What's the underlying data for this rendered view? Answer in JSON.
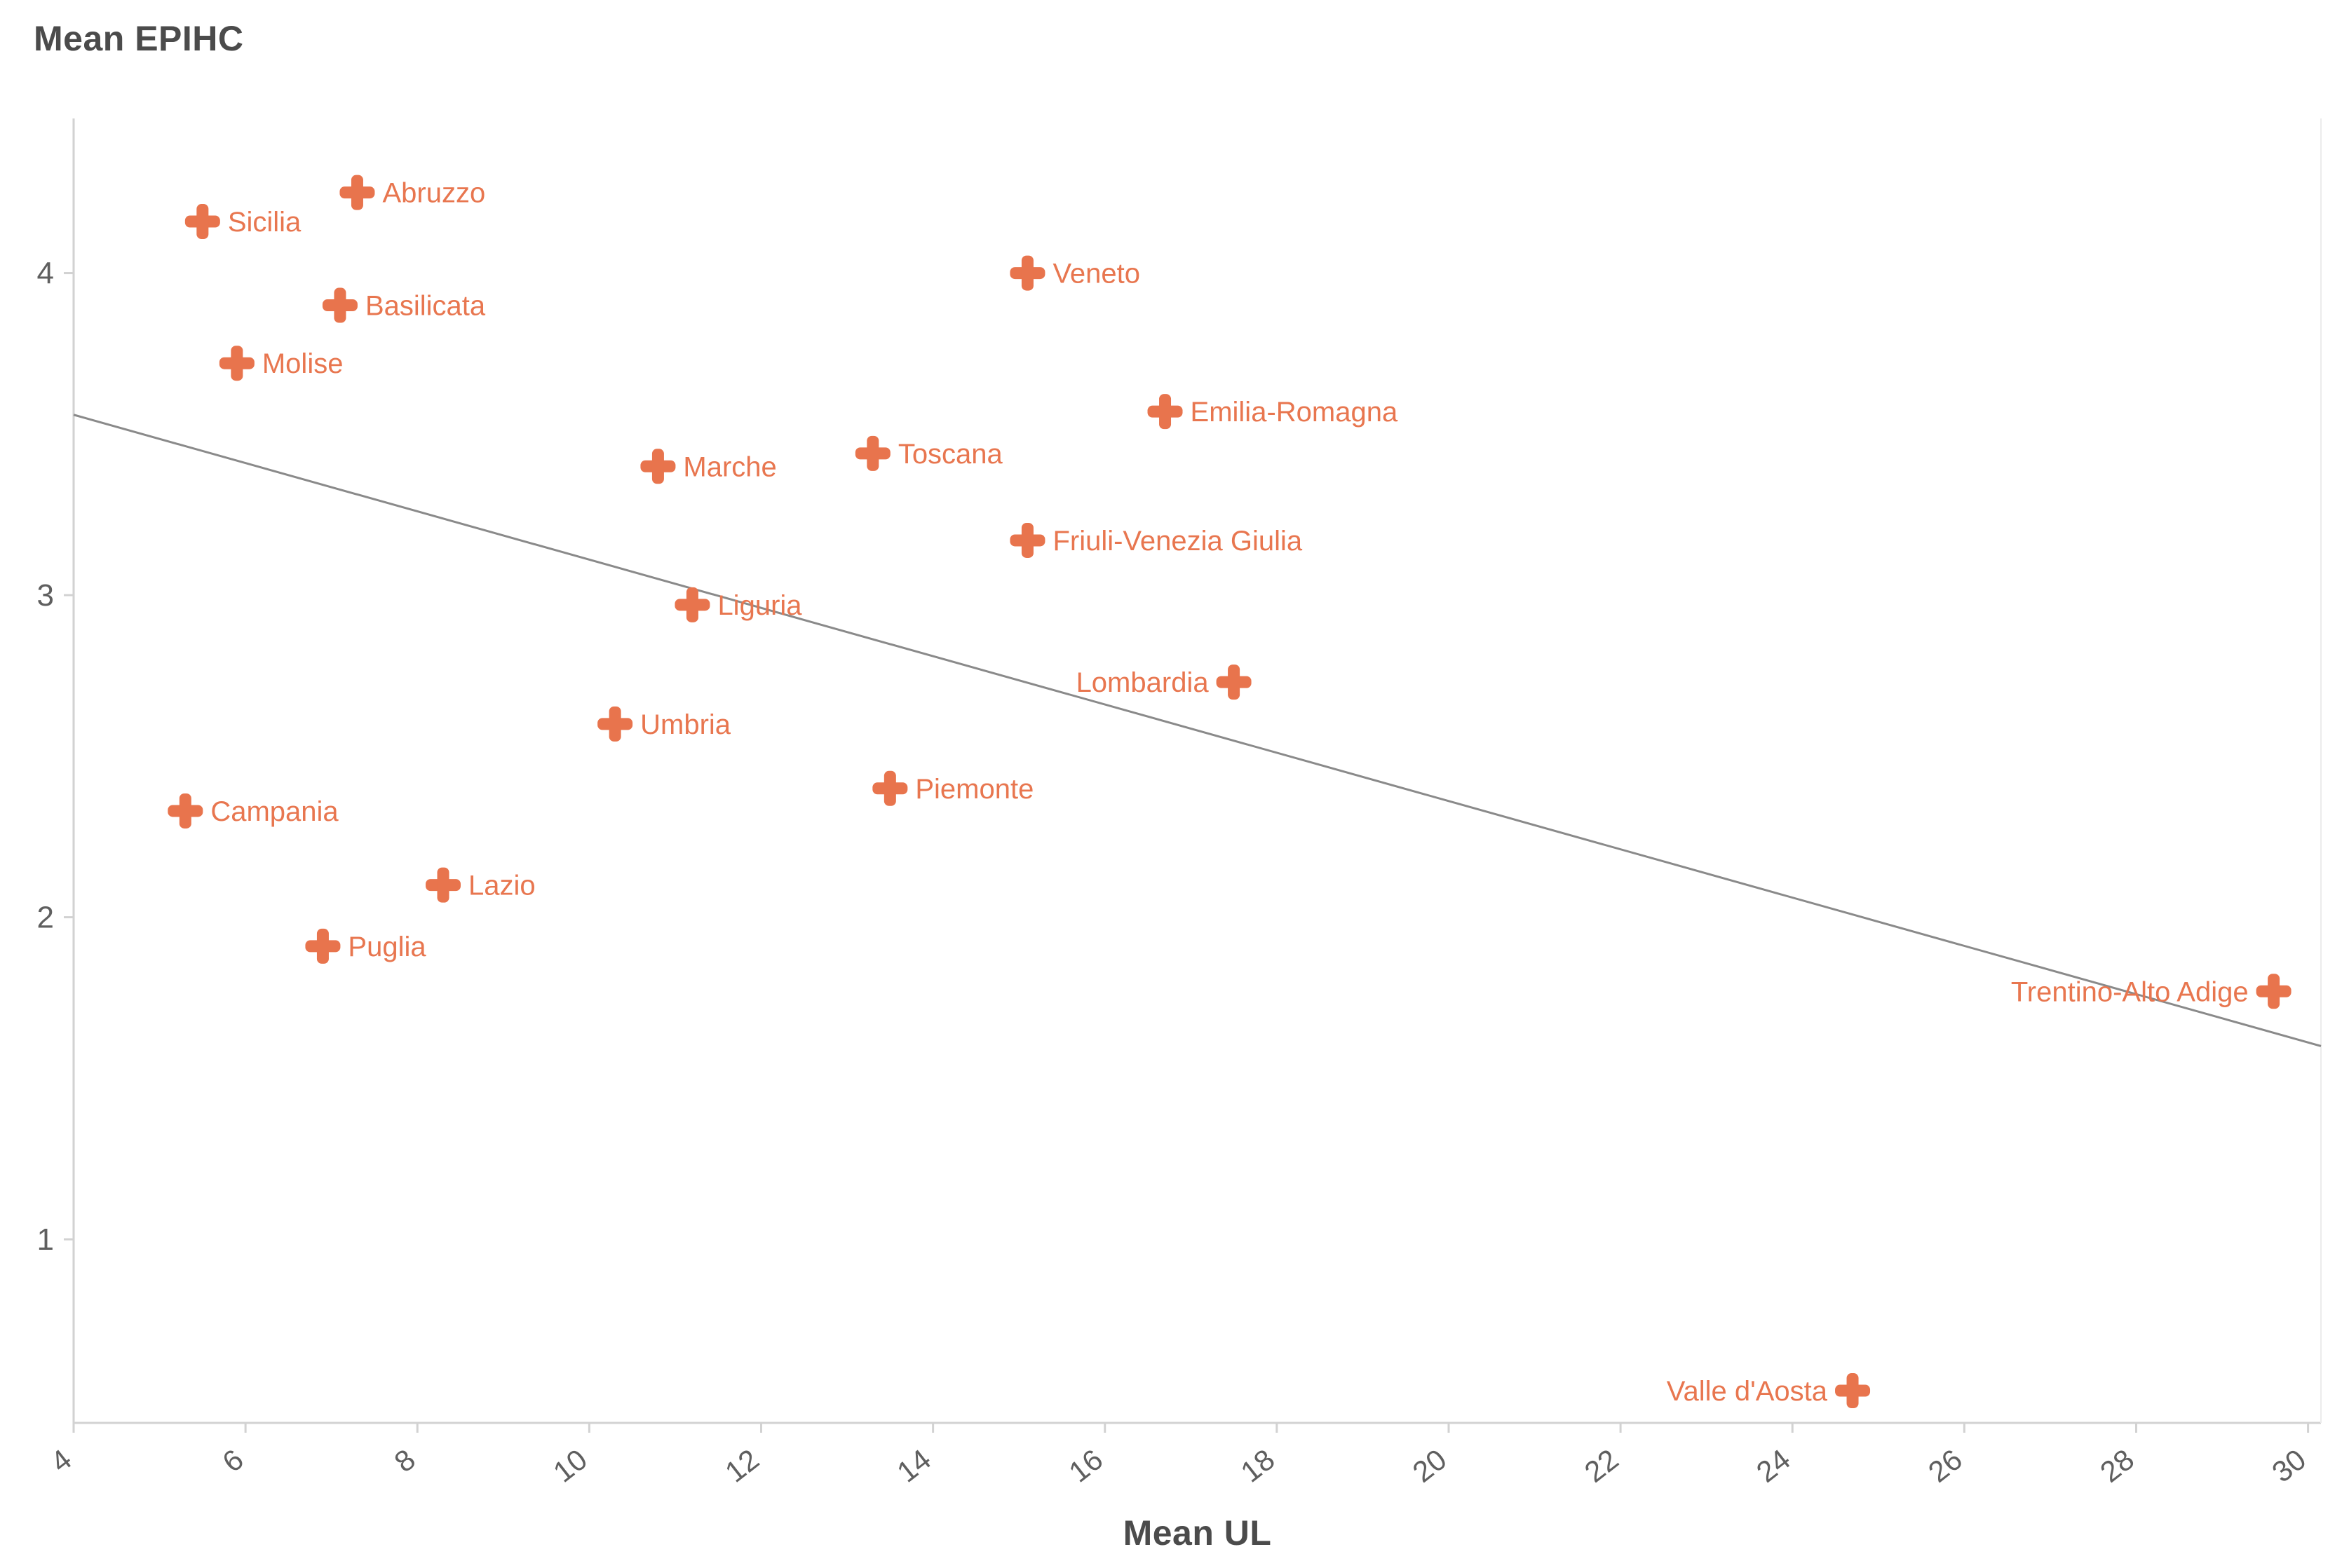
{
  "chart_data": {
    "type": "scatter",
    "title": "",
    "xlabel": "Mean UL",
    "ylabel": "Mean EPIHC",
    "xlim": [
      4,
      30.15
    ],
    "ylim": [
      0.43,
      4.48
    ],
    "x_ticks": [
      4,
      6,
      8,
      10,
      12,
      14,
      16,
      18,
      20,
      22,
      24,
      26,
      28,
      30
    ],
    "y_ticks": [
      1,
      2,
      3,
      4
    ],
    "grid": "off",
    "legend": "none",
    "marker": "plus",
    "marker_color": "#e8744d",
    "label_color": "#e8764f",
    "axis_color": "#d2d2d2",
    "tick_text_color": "#5f5f5f",
    "trendline": {
      "x1": 4,
      "y1": 3.56,
      "x2": 30.15,
      "y2": 1.6,
      "color": "#8a8a8a"
    },
    "points": [
      {
        "name": "Abruzzo",
        "x": 7.3,
        "y": 4.25,
        "label_side": "right"
      },
      {
        "name": "Sicilia",
        "x": 5.5,
        "y": 4.16,
        "label_side": "right"
      },
      {
        "name": "Veneto",
        "x": 15.1,
        "y": 4.0,
        "label_side": "right"
      },
      {
        "name": "Basilicata",
        "x": 7.1,
        "y": 3.9,
        "label_side": "right"
      },
      {
        "name": "Molise",
        "x": 5.9,
        "y": 3.72,
        "label_side": "right"
      },
      {
        "name": "Emilia-Romagna",
        "x": 16.7,
        "y": 3.57,
        "label_side": "right"
      },
      {
        "name": "Toscana",
        "x": 13.3,
        "y": 3.44,
        "label_side": "right"
      },
      {
        "name": "Marche",
        "x": 10.8,
        "y": 3.4,
        "label_side": "right"
      },
      {
        "name": "Friuli-Venezia Giulia",
        "x": 15.1,
        "y": 3.17,
        "label_side": "right"
      },
      {
        "name": "Liguria",
        "x": 11.2,
        "y": 2.97,
        "label_side": "right"
      },
      {
        "name": "Lombardia",
        "x": 17.5,
        "y": 2.73,
        "label_side": "left"
      },
      {
        "name": "Umbria",
        "x": 10.3,
        "y": 2.6,
        "label_side": "right"
      },
      {
        "name": "Piemonte",
        "x": 13.5,
        "y": 2.4,
        "label_side": "right"
      },
      {
        "name": "Campania",
        "x": 5.3,
        "y": 2.33,
        "label_side": "right"
      },
      {
        "name": "Lazio",
        "x": 8.3,
        "y": 2.1,
        "label_side": "right"
      },
      {
        "name": "Puglia",
        "x": 6.9,
        "y": 1.91,
        "label_side": "right"
      },
      {
        "name": "Trentino-Alto Adige",
        "x": 29.6,
        "y": 1.77,
        "label_side": "left"
      },
      {
        "name": "Valle d'Aosta",
        "x": 24.7,
        "y": 0.53,
        "label_side": "left"
      }
    ]
  }
}
